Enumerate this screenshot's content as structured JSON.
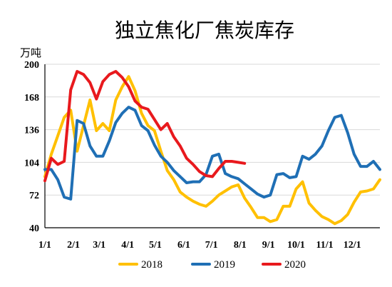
{
  "chart_data": {
    "type": "line",
    "title": "独立焦化厂焦炭库存",
    "ylabel": "万吨",
    "xlabel": "",
    "ylim": [
      40,
      200
    ],
    "yticks": [
      40,
      72,
      104,
      136,
      168,
      200
    ],
    "xlim": [
      0,
      52
    ],
    "xticks": [
      {
        "label": "1/1",
        "x": 0
      },
      {
        "label": "2/1",
        "x": 4.43
      },
      {
        "label": "3/1",
        "x": 8.43
      },
      {
        "label": "4/1",
        "x": 12.86
      },
      {
        "label": "5/1",
        "x": 17.14
      },
      {
        "label": "6/1",
        "x": 21.57
      },
      {
        "label": "7/1",
        "x": 25.86
      },
      {
        "label": "8/1",
        "x": 30.29
      },
      {
        "label": "9/1",
        "x": 34.71
      },
      {
        "label": "10/1",
        "x": 39
      },
      {
        "label": "11/1",
        "x": 43.43
      },
      {
        "label": "12/1",
        "x": 47.71
      }
    ],
    "grid": true,
    "legend_position": "bottom",
    "series": [
      {
        "name": "2018",
        "color": "#FFC000",
        "x": [
          0,
          1,
          2,
          3,
          4,
          5,
          6,
          7,
          8,
          9,
          10,
          11,
          12,
          13,
          14,
          15,
          16,
          17,
          18,
          19,
          20,
          21,
          22,
          23,
          24,
          25,
          26,
          27,
          28,
          29,
          30,
          31,
          32,
          33,
          34,
          35,
          36,
          37,
          38,
          39,
          40,
          41,
          42,
          43,
          44,
          45,
          46,
          47,
          48,
          49,
          50,
          51,
          52
        ],
        "values": [
          90,
          112,
          130,
          148,
          155,
          115,
          140,
          165,
          135,
          142,
          135,
          165,
          178,
          188,
          174,
          152,
          140,
          135,
          115,
          96,
          87,
          75,
          70,
          66,
          63,
          61,
          66,
          72,
          76,
          80,
          82,
          69,
          60,
          50,
          50,
          46,
          48,
          61,
          61,
          78,
          85,
          64,
          57,
          51,
          48,
          44,
          47,
          53,
          65,
          75,
          76,
          78,
          87
        ]
      },
      {
        "name": "2019",
        "color": "#1F6FB5",
        "x": [
          0,
          1,
          2,
          3,
          4,
          5,
          6,
          7,
          8,
          9,
          10,
          11,
          12,
          13,
          14,
          15,
          16,
          17,
          18,
          19,
          20,
          21,
          22,
          23,
          24,
          25,
          26,
          27,
          28,
          29,
          30,
          31,
          32,
          33,
          34,
          35,
          36,
          37,
          38,
          39,
          40,
          41,
          42,
          43,
          44,
          45,
          46,
          47,
          48,
          49,
          50,
          51,
          52
        ],
        "values": [
          97,
          97,
          87,
          70,
          68,
          145,
          142,
          120,
          110,
          110,
          125,
          143,
          152,
          158,
          155,
          140,
          135,
          121,
          110,
          104,
          96,
          90,
          84,
          85,
          85,
          92,
          110,
          112,
          93,
          90,
          88,
          83,
          78,
          73,
          70,
          72,
          92,
          93,
          89,
          90,
          110,
          107,
          112,
          120,
          135,
          148,
          150,
          133,
          112,
          100,
          100,
          105,
          97
        ]
      },
      {
        "name": "2020",
        "color": "#E8191D",
        "x": [
          0,
          1,
          2,
          3,
          4,
          5,
          6,
          7,
          8,
          9,
          10,
          11,
          12,
          13,
          14,
          15,
          16,
          17,
          18,
          19,
          20,
          21,
          22,
          23,
          24,
          25,
          26,
          27,
          28,
          29,
          30,
          31
        ],
        "values": [
          86,
          108,
          102,
          105,
          175,
          193,
          190,
          182,
          166,
          183,
          190,
          193,
          187,
          178,
          164,
          158,
          156,
          146,
          136,
          142,
          129,
          120,
          108,
          102,
          95,
          91,
          90,
          98,
          105,
          105,
          104,
          103
        ]
      }
    ]
  }
}
